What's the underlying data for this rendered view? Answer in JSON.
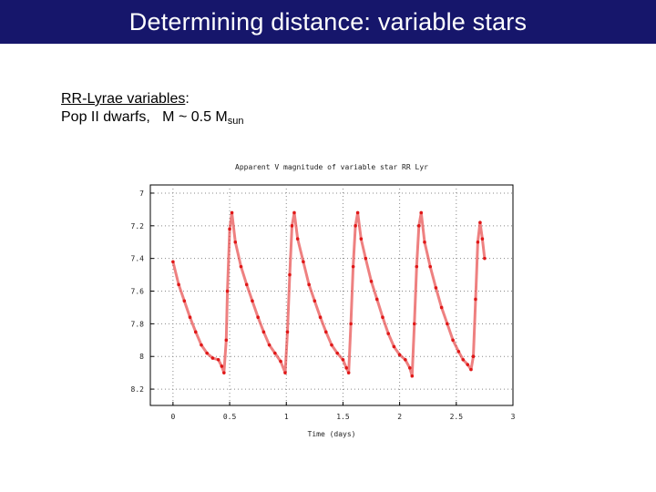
{
  "header": {
    "title": "Determining distance: variable stars"
  },
  "content": {
    "heading_underlined": "RR-Lyrae variables",
    "heading_colon": ":",
    "line2_prefix": "Pop II dwarfs,",
    "line2_m": "M ~ 0.5 M",
    "line2_sub": "sun"
  },
  "chart_data": {
    "type": "scatter",
    "title": "Apparent V magnitude of variable star RR Lyr",
    "xlabel": "Time (days)",
    "ylabel": "",
    "xlim": [
      -0.2,
      3
    ],
    "ylim": [
      8.3,
      6.95
    ],
    "y_inverted": true,
    "grid": true,
    "x_ticks": [
      0,
      0.5,
      1,
      1.5,
      2,
      2.5,
      3
    ],
    "x_tick_labels": [
      "0",
      "0.5",
      "1",
      "1.5",
      "2",
      "2.5",
      "3"
    ],
    "y_ticks": [
      7,
      7.2,
      7.4,
      7.6,
      7.8,
      8,
      8.2
    ],
    "y_tick_labels": [
      "7",
      "7.2",
      "7.4",
      "7.6",
      "7.8",
      "8",
      "8.2"
    ],
    "color": "#e01818",
    "series": [
      {
        "values": [
          {
            "x": 0.0,
            "y": 7.42
          },
          {
            "x": 0.05,
            "y": 7.56
          },
          {
            "x": 0.1,
            "y": 7.66
          },
          {
            "x": 0.15,
            "y": 7.76
          },
          {
            "x": 0.2,
            "y": 7.85
          },
          {
            "x": 0.25,
            "y": 7.93
          },
          {
            "x": 0.3,
            "y": 7.98
          },
          {
            "x": 0.35,
            "y": 8.01
          },
          {
            "x": 0.4,
            "y": 8.02
          },
          {
            "x": 0.43,
            "y": 8.06
          },
          {
            "x": 0.45,
            "y": 8.1
          },
          {
            "x": 0.47,
            "y": 7.9
          },
          {
            "x": 0.48,
            "y": 7.6
          },
          {
            "x": 0.5,
            "y": 7.22
          },
          {
            "x": 0.52,
            "y": 7.12
          },
          {
            "x": 0.55,
            "y": 7.3
          },
          {
            "x": 0.6,
            "y": 7.45
          },
          {
            "x": 0.65,
            "y": 7.56
          },
          {
            "x": 0.7,
            "y": 7.66
          },
          {
            "x": 0.75,
            "y": 7.76
          },
          {
            "x": 0.8,
            "y": 7.85
          },
          {
            "x": 0.85,
            "y": 7.93
          },
          {
            "x": 0.9,
            "y": 7.98
          },
          {
            "x": 0.95,
            "y": 8.03
          },
          {
            "x": 0.99,
            "y": 8.1
          },
          {
            "x": 1.01,
            "y": 7.85
          },
          {
            "x": 1.03,
            "y": 7.5
          },
          {
            "x": 1.05,
            "y": 7.2
          },
          {
            "x": 1.07,
            "y": 7.12
          },
          {
            "x": 1.1,
            "y": 7.28
          },
          {
            "x": 1.15,
            "y": 7.42
          },
          {
            "x": 1.2,
            "y": 7.56
          },
          {
            "x": 1.25,
            "y": 7.66
          },
          {
            "x": 1.3,
            "y": 7.76
          },
          {
            "x": 1.35,
            "y": 7.85
          },
          {
            "x": 1.4,
            "y": 7.93
          },
          {
            "x": 1.45,
            "y": 7.98
          },
          {
            "x": 1.5,
            "y": 8.02
          },
          {
            "x": 1.53,
            "y": 8.07
          },
          {
            "x": 1.55,
            "y": 8.1
          },
          {
            "x": 1.57,
            "y": 7.8
          },
          {
            "x": 1.59,
            "y": 7.45
          },
          {
            "x": 1.61,
            "y": 7.2
          },
          {
            "x": 1.63,
            "y": 7.12
          },
          {
            "x": 1.66,
            "y": 7.28
          },
          {
            "x": 1.7,
            "y": 7.4
          },
          {
            "x": 1.75,
            "y": 7.54
          },
          {
            "x": 1.8,
            "y": 7.65
          },
          {
            "x": 1.85,
            "y": 7.76
          },
          {
            "x": 1.9,
            "y": 7.86
          },
          {
            "x": 1.95,
            "y": 7.94
          },
          {
            "x": 2.0,
            "y": 7.99
          },
          {
            "x": 2.05,
            "y": 8.02
          },
          {
            "x": 2.09,
            "y": 8.07
          },
          {
            "x": 2.11,
            "y": 8.12
          },
          {
            "x": 2.13,
            "y": 7.8
          },
          {
            "x": 2.15,
            "y": 7.45
          },
          {
            "x": 2.17,
            "y": 7.2
          },
          {
            "x": 2.19,
            "y": 7.12
          },
          {
            "x": 2.22,
            "y": 7.3
          },
          {
            "x": 2.27,
            "y": 7.45
          },
          {
            "x": 2.32,
            "y": 7.58
          },
          {
            "x": 2.37,
            "y": 7.7
          },
          {
            "x": 2.42,
            "y": 7.8
          },
          {
            "x": 2.47,
            "y": 7.9
          },
          {
            "x": 2.52,
            "y": 7.97
          },
          {
            "x": 2.56,
            "y": 8.02
          },
          {
            "x": 2.6,
            "y": 8.05
          },
          {
            "x": 2.63,
            "y": 8.08
          },
          {
            "x": 2.65,
            "y": 8.0
          },
          {
            "x": 2.67,
            "y": 7.65
          },
          {
            "x": 2.69,
            "y": 7.3
          },
          {
            "x": 2.71,
            "y": 7.18
          },
          {
            "x": 2.73,
            "y": 7.28
          },
          {
            "x": 2.75,
            "y": 7.4
          }
        ]
      }
    ]
  }
}
